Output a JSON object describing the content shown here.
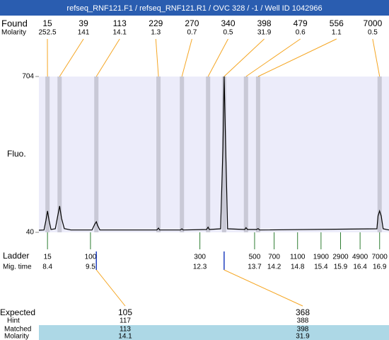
{
  "header": {
    "title": "refseq_RNF121.F1 / refseq_RNF121.R1 / OVC 328 / -1 / Well ID 1042966"
  },
  "chart_data": {
    "type": "electropherogram",
    "y_label": "Fluo.",
    "ylim": [
      40,
      704
    ],
    "yticks": [
      704,
      40
    ],
    "xlim": [
      8.18,
      17.14
    ],
    "found": {
      "label": "Found",
      "molarity_label": "Molarity",
      "sizes": [
        15,
        39,
        113,
        229,
        270,
        340,
        398,
        479,
        556,
        7000
      ],
      "molarity": [
        252.5,
        141,
        14.1,
        1.3,
        0.7,
        0.5,
        31.9,
        0.6,
        1.1,
        0.5
      ],
      "times": [
        8.4,
        8.71,
        9.65,
        11.24,
        11.84,
        12.51,
        12.92,
        13.48,
        13.79,
        16.9
      ]
    },
    "ladder": {
      "label": "Ladder",
      "time_label": "Mig. time",
      "sizes": [
        15,
        100,
        300,
        500,
        700,
        1100,
        1900,
        2900,
        4900,
        7000
      ],
      "times": [
        8.4,
        9.5,
        12.3,
        13.7,
        14.2,
        14.8,
        15.4,
        15.9,
        16.4,
        16.9
      ]
    },
    "trace": {
      "x": [
        8.18,
        8.31,
        8.36,
        8.4,
        8.44,
        8.49,
        8.6,
        8.65,
        8.71,
        8.76,
        8.83,
        9.0,
        9.54,
        9.61,
        9.65,
        9.68,
        9.74,
        11.2,
        11.24,
        11.27,
        11.8,
        11.84,
        11.87,
        12.47,
        12.51,
        12.54,
        12.83,
        12.89,
        12.92,
        12.96,
        13.01,
        13.45,
        13.48,
        13.52,
        13.75,
        13.79,
        13.83,
        16.83,
        16.86,
        16.9,
        16.94,
        16.99,
        17.14
      ],
      "y": [
        49,
        50,
        90,
        131,
        90,
        52,
        55,
        100,
        152,
        100,
        56,
        50,
        50,
        75,
        85,
        70,
        50,
        50,
        58,
        50,
        50,
        55,
        50,
        52,
        62,
        52,
        55,
        400,
        704,
        400,
        55,
        52,
        60,
        52,
        52,
        56,
        50,
        55,
        110,
        131,
        110,
        55,
        50
      ]
    },
    "expected": {
      "label": "Expected",
      "hint_label": "Hint",
      "matched_label": "Matched",
      "molarity_label": "Molarity",
      "values": [
        105,
        368
      ],
      "hint": [
        117,
        388
      ],
      "matched": [
        113,
        398
      ],
      "molarity": [
        14.1,
        31.9
      ],
      "times": [
        9.65,
        12.92
      ]
    }
  }
}
